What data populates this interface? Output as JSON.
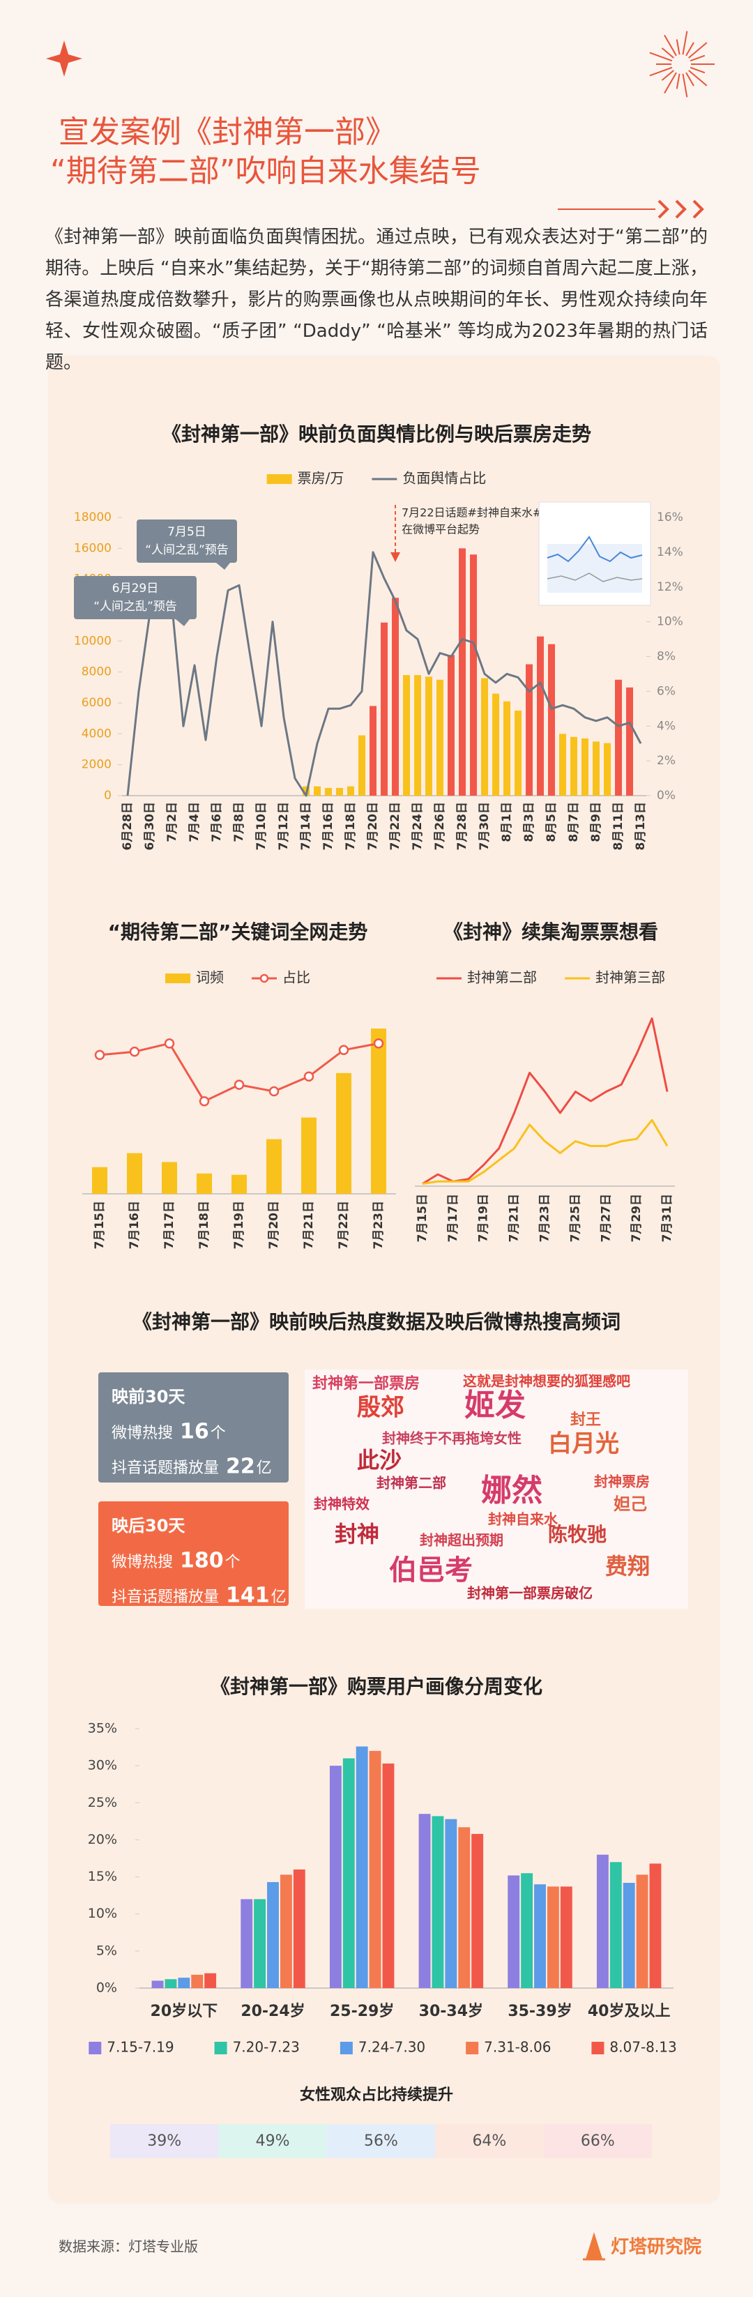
{
  "header": {
    "title_line1": "宣发案例《封神第一部》",
    "title_line2": "“期待第二部”吹响自来水集结号"
  },
  "intro": "《封神第一部》映前面临负面舆情困扰。通过点映，已有观众表达对于“第二部”的期待。上映后 “自来水”集结起势，关于“期待第二部”的词频自首周六起二度上涨，各渠道热度成倍数攀升，影片的购票画像也从点映期间的年长、男性观众持续向年轻、女性观众破圈。“质子团” “Daddy” “哈基米” 等均成为2023年暑期的热门话题。",
  "chart_data": [
    {
      "type": "bar_line",
      "title": "《封神第一部》映前负面舆情比例与映后票房走势",
      "categories": [
        "6月28日",
        null,
        "6月30日",
        null,
        "7月2日",
        null,
        "7月4日",
        null,
        "7月6日",
        null,
        "7月8日",
        null,
        "7月10日",
        null,
        "7月12日",
        null,
        "7月14日",
        null,
        "7月16日",
        null,
        "7月18日",
        null,
        "7月20日",
        null,
        "7月22日",
        null,
        "7月24日",
        null,
        "7月26日",
        null,
        "7月28日",
        null,
        "7月30日",
        null,
        "8月1日",
        null,
        "8月3日",
        null,
        "8月5日",
        null,
        "8月7日",
        null,
        "8月9日",
        null,
        "8月11日",
        null,
        "8月13日"
      ],
      "series": [
        {
          "name": "票房/万",
          "color": "#f9c11c",
          "values": [
            null,
            null,
            null,
            null,
            null,
            null,
            null,
            null,
            null,
            null,
            null,
            null,
            null,
            null,
            null,
            null,
            600,
            600,
            500,
            500,
            600,
            3900,
            5800,
            11200,
            12800,
            7800,
            7800,
            7700,
            7500,
            9100,
            16000,
            15600,
            7600,
            6600,
            6100,
            5500,
            8500,
            10300,
            9800,
            4000,
            3800,
            3700,
            3500,
            3400,
            7500,
            7000,
            null
          ],
          "colors": [
            null,
            null,
            null,
            null,
            null,
            null,
            null,
            null,
            null,
            null,
            null,
            null,
            null,
            null,
            null,
            null,
            "#f9c11c",
            "#f9c11c",
            "#f9c11c",
            "#f9c11c",
            "#f9c11c",
            "#f9c11c",
            "#f2584a",
            "#f2584a",
            "#f2584a",
            "#f9c11c",
            "#f9c11c",
            "#f9c11c",
            "#f9c11c",
            "#f2584a",
            "#f2584a",
            "#f2584a",
            "#f9c11c",
            "#f9c11c",
            "#f9c11c",
            "#f9c11c",
            "#f2584a",
            "#f2584a",
            "#f2584a",
            "#f9c11c",
            "#f9c11c",
            "#f9c11c",
            "#f9c11c",
            "#f9c11c",
            "#f2584a",
            "#f2584a",
            null
          ]
        },
        {
          "name": "负面舆情占比",
          "color": "#6b7784",
          "axis": "y2",
          "values": [
            0,
            6,
            10.5,
            11,
            10.8,
            4,
            7.5,
            3.2,
            8,
            11.8,
            12.1,
            8,
            4,
            10,
            4.5,
            1,
            0,
            3,
            5,
            5,
            5.2,
            6,
            14,
            12.5,
            11.2,
            9.5,
            9,
            7,
            8.2,
            8,
            9,
            8.8,
            7,
            6.5,
            7,
            6.8,
            6,
            6.5,
            5,
            5.2,
            5,
            4.5,
            4.3,
            4.5,
            4,
            4.2,
            3
          ]
        }
      ],
      "ylim": [
        0,
        18000
      ],
      "yticks": [
        0,
        2000,
        4000,
        6000,
        8000,
        10000,
        12000,
        14000,
        16000,
        18000
      ],
      "y2lim": [
        0,
        16
      ],
      "y2ticks": [
        {
          "value": 0,
          "label": "0%"
        },
        {
          "value": 2,
          "label": "2%"
        },
        {
          "value": 4,
          "label": "4%"
        },
        {
          "value": 6,
          "label": "6%"
        },
        {
          "value": 8,
          "label": "8%"
        },
        {
          "value": 10,
          "label": "10%"
        },
        {
          "value": 12,
          "label": "12%"
        },
        {
          "value": 14,
          "label": "14%"
        },
        {
          "value": 16,
          "label": "16%"
        }
      ],
      "annotations": [
        {
          "lines": [
            "7月5日",
            "“人间之乱”预告"
          ]
        },
        {
          "lines": [
            "6月29日",
            "“人间之乱”预告"
          ]
        },
        {
          "lines": [
            "7月22日话题#封神自来水#",
            "在微博平台起势"
          ]
        }
      ]
    },
    {
      "type": "bar_line",
      "title": "“期待第二部”关键词全网走势",
      "categories": [
        "7月15日",
        "7月16日",
        "7月17日",
        "7月18日",
        "7月19日",
        "7月20日",
        "7月21日",
        "7月22日",
        "7月23日"
      ],
      "series": [
        {
          "name": "词频",
          "color": "#f9c11c",
          "values": [
            21,
            32,
            25,
            16,
            15,
            43,
            60,
            95,
            130
          ]
        },
        {
          "name": "占比",
          "color": "#ef5a4a",
          "axis": "y2",
          "markers": true,
          "values": [
            84,
            86,
            91,
            56,
            66,
            62,
            71,
            87,
            91
          ]
        }
      ],
      "ylim": [
        0,
        130
      ],
      "y2lim": [
        0,
        100
      ]
    },
    {
      "type": "line",
      "title": "《封神》续集淘票票想看",
      "categories": [
        "7月15日",
        null,
        "7月17日",
        null,
        "7月19日",
        null,
        "7月21日",
        null,
        "7月23日",
        null,
        "7月25日",
        null,
        "7月27日",
        null,
        "7月29日",
        null,
        "7月31日"
      ],
      "series": [
        {
          "name": "封神第二部",
          "color": "#ef4b45",
          "values": [
            1,
            5,
            2,
            3,
            9,
            16,
            31,
            48,
            40,
            31,
            40,
            36,
            40,
            43,
            56,
            71,
            40
          ]
        },
        {
          "name": "封神第三部",
          "color": "#f9c11c",
          "values": [
            1,
            2,
            2,
            2,
            6,
            11,
            16,
            26,
            19,
            14,
            19,
            17,
            17,
            19,
            20,
            28,
            17
          ]
        }
      ],
      "ylim": [
        0,
        80
      ]
    },
    {
      "type": "grouped_bar",
      "title": "《封神第一部》购票用户画像分周变化",
      "categories": [
        "20岁以下",
        "20-24岁",
        "25-29岁",
        "30-34岁",
        "35-39岁",
        "40岁及以上"
      ],
      "series": [
        {
          "name": "7.15-7.19",
          "color": "#8c7fe0",
          "values": [
            1.0,
            12,
            30,
            23.5,
            15.2,
            18
          ]
        },
        {
          "name": "7.20-7.23",
          "color": "#2ec4a5",
          "values": [
            1.2,
            12,
            31,
            23.2,
            15.5,
            17
          ]
        },
        {
          "name": "7.24-7.30",
          "color": "#5b9be8",
          "values": [
            1.4,
            14.3,
            32.6,
            22.8,
            14,
            14.2
          ]
        },
        {
          "name": "7.31-8.06",
          "color": "#f47a50",
          "values": [
            1.8,
            15.3,
            32,
            21.7,
            13.7,
            15.3
          ]
        },
        {
          "name": "8.07-8.13",
          "color": "#f2584a",
          "values": [
            2.0,
            16,
            30.3,
            20.8,
            13.7,
            16.8
          ]
        }
      ],
      "ylim": [
        0,
        35
      ],
      "yticks": [
        {
          "value": 0,
          "label": "0%"
        },
        {
          "value": 5,
          "label": "5%"
        },
        {
          "value": 10,
          "label": "10%"
        },
        {
          "value": 15,
          "label": "15%"
        },
        {
          "value": 20,
          "label": "20%"
        },
        {
          "value": 25,
          "label": "25%"
        },
        {
          "value": 30,
          "label": "30%"
        },
        {
          "value": 35,
          "label": "35%"
        }
      ]
    }
  ],
  "heat_section": {
    "title": "《封神第一部》映前映后热度数据及映后微博热搜高频词",
    "before": {
      "period": "映前30天",
      "rows": [
        {
          "label": "微博热搜",
          "number": "16",
          "unit": "个"
        },
        {
          "label": "抖音话题播放量",
          "number": "22",
          "unit": "亿"
        }
      ]
    },
    "after": {
      "period": "映后30天",
      "rows": [
        {
          "label": "微博热搜",
          "number": "180",
          "unit": "个"
        },
        {
          "label": "抖音话题播放量",
          "number": "141",
          "unit": "亿"
        }
      ]
    },
    "word_cloud": [
      {
        "text": "封神第一部票房",
        "color": "#d94060"
      },
      {
        "text": "这就是封神想要的狐狸感吧",
        "color": "#e0423a"
      },
      {
        "text": "殷郊",
        "color": "#e0423a"
      },
      {
        "text": "姬发",
        "color": "#d63b6a"
      },
      {
        "text": "封王",
        "color": "#e06040"
      },
      {
        "text": "封神终于不再拖垮女性",
        "color": "#c94060"
      },
      {
        "text": "白月光",
        "color": "#e3643a"
      },
      {
        "text": "此沙",
        "color": "#c02a3a"
      },
      {
        "text": "封神第二部",
        "color": "#c03050"
      },
      {
        "text": "娜然",
        "color": "#d63b6a"
      },
      {
        "text": "封神票房",
        "color": "#e04a40"
      },
      {
        "text": "封神特效",
        "color": "#d03050"
      },
      {
        "text": "妲己",
        "color": "#e06040"
      },
      {
        "text": "封神",
        "color": "#c02a3a"
      },
      {
        "text": "封神超出预期",
        "color": "#d34050"
      },
      {
        "text": "陈牧驰",
        "color": "#d0403a"
      },
      {
        "text": "伯邑考",
        "color": "#d63b6a"
      },
      {
        "text": "费翔",
        "color": "#e06040"
      },
      {
        "text": "封神第一部票房破亿",
        "color": "#c02a3a"
      },
      {
        "text": "封神自来水",
        "color": "#e04a40"
      }
    ]
  },
  "female_share": {
    "title": "女性观众占比持续提升",
    "cells": [
      {
        "label": "39%",
        "color": "#ece8f8"
      },
      {
        "label": "49%",
        "color": "#dcf6ef"
      },
      {
        "label": "56%",
        "color": "#e3eefb"
      },
      {
        "label": "64%",
        "color": "#fde8e0"
      },
      {
        "label": "66%",
        "color": "#fde4e4"
      }
    ]
  },
  "footer": {
    "source": "数据来源：灯塔专业版",
    "brand": "灯塔研究院"
  }
}
